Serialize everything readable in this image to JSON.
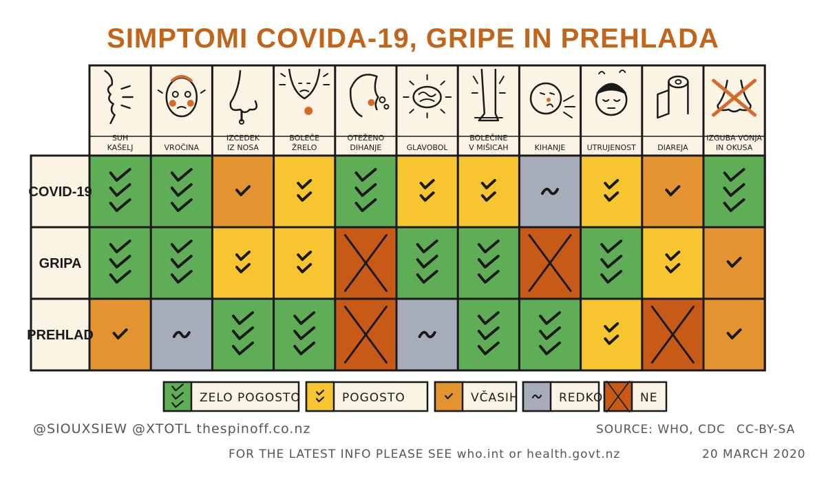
{
  "chart_data": {
    "type": "table",
    "title": "SIMPTOMI COVIDA-19, GRIPE IN PREHLADA",
    "columns": [
      {
        "label": [
          "SUH",
          "KAŠELJ"
        ],
        "icon": "cough-icon"
      },
      {
        "label": [
          "VROČINA"
        ],
        "icon": "fever-face-icon"
      },
      {
        "label": [
          "IZCEDEK",
          "IZ NOSA"
        ],
        "icon": "runny-nose-icon"
      },
      {
        "label": [
          "BOLEČE",
          "ŽRELO"
        ],
        "icon": "sore-throat-icon"
      },
      {
        "label": [
          "OTEŽENO",
          "DIHANJE"
        ],
        "icon": "difficulty-breathing-icon"
      },
      {
        "label": [
          "GLAVOBOL"
        ],
        "icon": "headache-brain-icon"
      },
      {
        "label": [
          "BOLEČINE",
          "V MIŠICAH"
        ],
        "icon": "aching-leg-icon"
      },
      {
        "label": [
          "KIHANJE"
        ],
        "icon": "sneezing-icon"
      },
      {
        "label": [
          "UTRUJENOST"
        ],
        "icon": "tired-face-icon"
      },
      {
        "label": [
          "DIAREJA"
        ],
        "icon": "toilet-paper-icon"
      },
      {
        "label": [
          "IZGUBA VONJA",
          "IN OKUSA"
        ],
        "icon": "crossed-nose-icon"
      }
    ],
    "rows": [
      {
        "label": "COVID-19",
        "values": [
          "zelo_pogosto",
          "zelo_pogosto",
          "vcasih",
          "pogosto",
          "zelo_pogosto",
          "pogosto",
          "pogosto",
          "redko",
          "pogosto",
          "vcasih",
          "zelo_pogosto"
        ]
      },
      {
        "label": "GRIPA",
        "values": [
          "zelo_pogosto",
          "zelo_pogosto",
          "pogosto",
          "pogosto",
          "ne",
          "zelo_pogosto",
          "zelo_pogosto",
          "ne",
          "zelo_pogosto",
          "pogosto",
          "vcasih"
        ]
      },
      {
        "label": "PREHLAD",
        "values": [
          "vcasih",
          "redko",
          "zelo_pogosto",
          "zelo_pogosto",
          "ne",
          "redko",
          "zelo_pogosto",
          "zelo_pogosto",
          "pogosto",
          "ne",
          "vcasih"
        ]
      }
    ],
    "legend": [
      {
        "key": "zelo_pogosto",
        "label": "ZELO POGOSTO",
        "color": "#5fad56"
      },
      {
        "key": "pogosto",
        "label": "POGOSTO",
        "color": "#f6c530"
      },
      {
        "key": "vcasih",
        "label": "VČASIH",
        "color": "#e39430"
      },
      {
        "key": "redko",
        "label": "REDKO",
        "color": "#a6acba"
      },
      {
        "key": "ne",
        "label": "NE",
        "color": "#c85a18"
      }
    ]
  },
  "colors": {
    "title": "#c0651a",
    "cream": "#fbf4e4",
    "ink": "#1a1a1a",
    "icon_accent": "#d56a2a"
  },
  "credits": {
    "handles": "@SIOUXSIEW @XTOTL thespinoff.co.nz",
    "source": "SOURCE:  WHO, CDC",
    "license": "CC-BY-SA",
    "latest": "FOR THE LATEST INFO PLEASE SEE  who.int  or  health.govt.nz",
    "date": "20 MARCH 2020"
  }
}
